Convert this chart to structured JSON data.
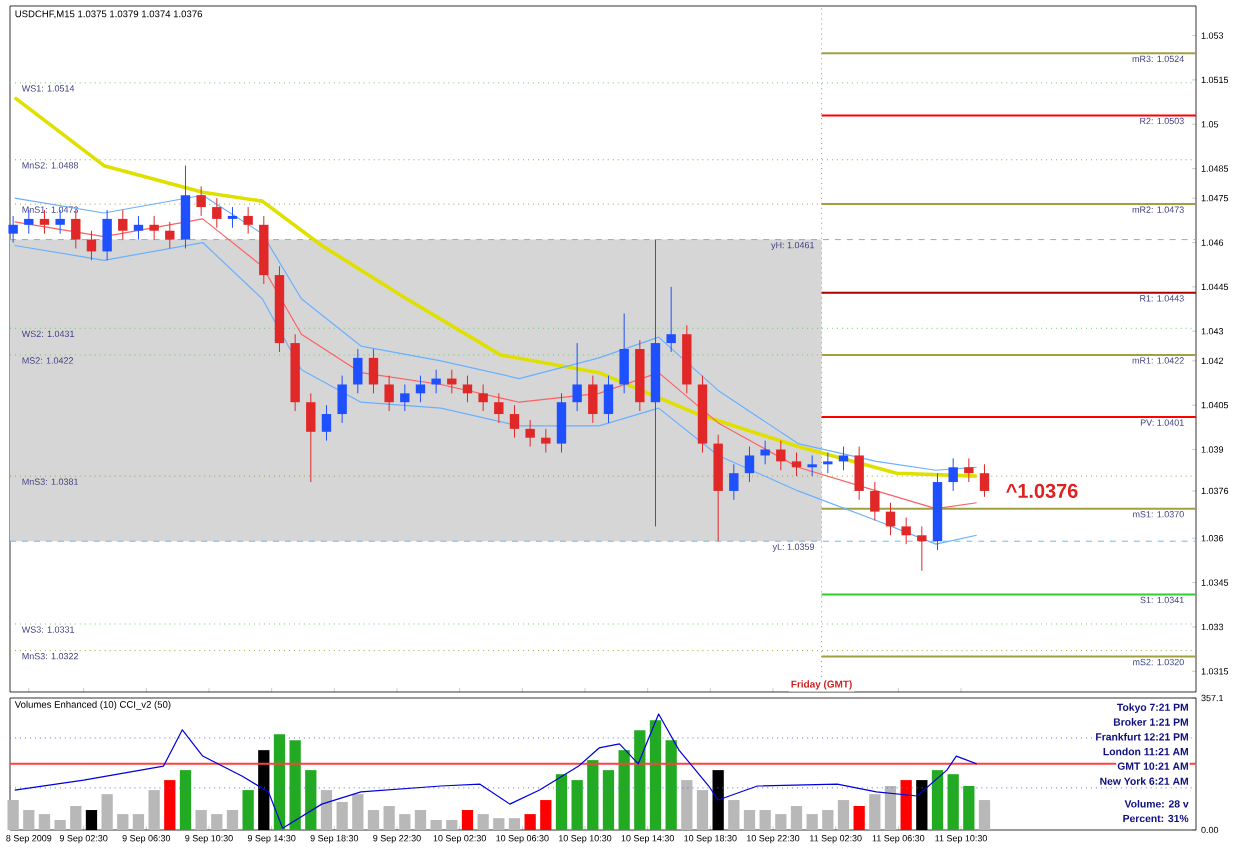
{
  "chart_data": [
    {
      "type": "candlestick",
      "title": "USDCHF,M15  1.0375 1.0379 1.0374 1.0376",
      "x": [
        "2009-09-08T22:00",
        "2009-09-08T23:00",
        "2009-09-09T00:00",
        "2009-09-09T01:00",
        "2009-09-09T02:00",
        "2009-09-09T03:00",
        "2009-09-09T04:00",
        "2009-09-09T05:00",
        "2009-09-09T06:00",
        "2009-09-09T07:00",
        "2009-09-09T08:00",
        "2009-09-09T09:00",
        "2009-09-09T10:00",
        "2009-09-09T11:00",
        "2009-09-09T12:00",
        "2009-09-09T13:00",
        "2009-09-09T14:00",
        "2009-09-09T15:00",
        "2009-09-09T16:00",
        "2009-09-09T17:00",
        "2009-09-09T18:00",
        "2009-09-09T19:00",
        "2009-09-09T20:00",
        "2009-09-09T21:00",
        "2009-09-09T22:00",
        "2009-09-09T23:00",
        "2009-09-10T00:00",
        "2009-09-10T01:00",
        "2009-09-10T02:00",
        "2009-09-10T03:00",
        "2009-09-10T04:00",
        "2009-09-10T05:00",
        "2009-09-10T06:00",
        "2009-09-10T07:00",
        "2009-09-10T08:00",
        "2009-09-10T09:00",
        "2009-09-10T10:00",
        "2009-09-10T11:00",
        "2009-09-10T12:00",
        "2009-09-10T13:00",
        "2009-09-10T14:00",
        "2009-09-10T15:00",
        "2009-09-10T16:00",
        "2009-09-10T17:00",
        "2009-09-10T18:00",
        "2009-09-10T19:00",
        "2009-09-10T20:00",
        "2009-09-10T21:00",
        "2009-09-10T22:00",
        "2009-09-10T23:00",
        "2009-09-11T00:00",
        "2009-09-11T01:00",
        "2009-09-11T02:00",
        "2009-09-11T03:00",
        "2009-09-11T04:00",
        "2009-09-11T05:00",
        "2009-09-11T06:00",
        "2009-09-11T07:00",
        "2009-09-11T08:00",
        "2009-09-11T09:00",
        "2009-09-11T10:00",
        "2009-09-11T11:00",
        "2009-09-11T12:00"
      ],
      "ohlc": [
        [
          1.0463,
          1.0469,
          1.046,
          1.0466
        ],
        [
          1.0466,
          1.0471,
          1.0463,
          1.0468
        ],
        [
          1.0468,
          1.0471,
          1.0463,
          1.0466
        ],
        [
          1.0466,
          1.0471,
          1.0463,
          1.0468
        ],
        [
          1.0468,
          1.0471,
          1.0458,
          1.0461
        ],
        [
          1.0461,
          1.0464,
          1.0454,
          1.0457
        ],
        [
          1.0457,
          1.0471,
          1.0454,
          1.0468
        ],
        [
          1.0468,
          1.0471,
          1.0461,
          1.0464
        ],
        [
          1.0464,
          1.0469,
          1.0461,
          1.0466
        ],
        [
          1.0466,
          1.0469,
          1.0461,
          1.0464
        ],
        [
          1.0464,
          1.0467,
          1.0458,
          1.0461
        ],
        [
          1.0461,
          1.0486,
          1.0458,
          1.0476
        ],
        [
          1.0476,
          1.0479,
          1.0469,
          1.0472
        ],
        [
          1.0472,
          1.0475,
          1.0465,
          1.0468
        ],
        [
          1.0468,
          1.0472,
          1.0465,
          1.0469
        ],
        [
          1.0469,
          1.0472,
          1.0463,
          1.0466
        ],
        [
          1.0466,
          1.0469,
          1.0446,
          1.0449
        ],
        [
          1.0449,
          1.0452,
          1.0423,
          1.0426
        ],
        [
          1.0426,
          1.0429,
          1.0403,
          1.0406
        ],
        [
          1.0406,
          1.0409,
          1.0379,
          1.0396
        ],
        [
          1.0396,
          1.0405,
          1.0393,
          1.0402
        ],
        [
          1.0402,
          1.0415,
          1.0399,
          1.0412
        ],
        [
          1.0412,
          1.0424,
          1.0409,
          1.0421
        ],
        [
          1.0421,
          1.0424,
          1.0409,
          1.0412
        ],
        [
          1.0412,
          1.0415,
          1.0403,
          1.0406
        ],
        [
          1.0406,
          1.0412,
          1.0403,
          1.0409
        ],
        [
          1.0409,
          1.0415,
          1.0406,
          1.0412
        ],
        [
          1.0412,
          1.0417,
          1.0409,
          1.0414
        ],
        [
          1.0414,
          1.0417,
          1.0409,
          1.0412
        ],
        [
          1.0412,
          1.0415,
          1.0406,
          1.0409
        ],
        [
          1.0409,
          1.0412,
          1.0403,
          1.0406
        ],
        [
          1.0406,
          1.0409,
          1.0399,
          1.0402
        ],
        [
          1.0402,
          1.0405,
          1.0394,
          1.0397
        ],
        [
          1.0397,
          1.04,
          1.0391,
          1.0394
        ],
        [
          1.0394,
          1.0397,
          1.0389,
          1.0392
        ],
        [
          1.0392,
          1.0409,
          1.0389,
          1.0406
        ],
        [
          1.0406,
          1.0426,
          1.0403,
          1.0412
        ],
        [
          1.0412,
          1.0415,
          1.0399,
          1.0402
        ],
        [
          1.0402,
          1.0415,
          1.0399,
          1.0412
        ],
        [
          1.0412,
          1.0436,
          1.0409,
          1.0424
        ],
        [
          1.0424,
          1.0427,
          1.0403,
          1.0406
        ],
        [
          1.0406,
          1.0461,
          1.0364,
          1.0426
        ],
        [
          1.0426,
          1.0445,
          1.0423,
          1.0429
        ],
        [
          1.0429,
          1.0432,
          1.0409,
          1.0412
        ],
        [
          1.0412,
          1.0415,
          1.0389,
          1.0392
        ],
        [
          1.0392,
          1.0395,
          1.0359,
          1.0376
        ],
        [
          1.0376,
          1.0385,
          1.0373,
          1.0382
        ],
        [
          1.0382,
          1.0391,
          1.0379,
          1.0388
        ],
        [
          1.0388,
          1.0393,
          1.0385,
          1.039
        ],
        [
          1.039,
          1.0393,
          1.0383,
          1.0386
        ],
        [
          1.0386,
          1.0389,
          1.0381,
          1.0384
        ],
        [
          1.0384,
          1.0388,
          1.0381,
          1.0385
        ],
        [
          1.0385,
          1.0389,
          1.0382,
          1.0386
        ],
        [
          1.0386,
          1.0391,
          1.0383,
          1.0388
        ],
        [
          1.0388,
          1.0391,
          1.0373,
          1.0376
        ],
        [
          1.0376,
          1.0379,
          1.0366,
          1.0369
        ],
        [
          1.0369,
          1.0372,
          1.0361,
          1.0364
        ],
        [
          1.0364,
          1.0367,
          1.0358,
          1.0361
        ],
        [
          1.0361,
          1.0364,
          1.0349,
          1.0359
        ],
        [
          1.0359,
          1.0382,
          1.0356,
          1.0379
        ],
        [
          1.0379,
          1.0387,
          1.0376,
          1.0384
        ],
        [
          1.0384,
          1.0387,
          1.0379,
          1.0382
        ],
        [
          1.0382,
          1.0385,
          1.0374,
          1.0376
        ]
      ],
      "series": [
        {
          "type": "line",
          "color": "#e0e000",
          "x": [
            "2009-09-08T22:06",
            "2009-09-09T03:48",
            "2009-09-09T10:06",
            "2009-09-09T13:54",
            "2009-09-09T17:42",
            "2009-09-09T22:48",
            "2009-09-10T05:06",
            "2009-09-10T11:24",
            "2009-09-10T17:42",
            "2009-09-11T00:06",
            "2009-09-11T06:24",
            "2009-09-11T11:30"
          ],
          "values": [
            1.0509,
            1.0486,
            1.0477,
            1.0474,
            1.0459,
            1.0442,
            1.0422,
            1.0416,
            1.0402,
            1.0391,
            1.0382,
            1.0381
          ]
        },
        {
          "type": "line",
          "color": "#ff6060",
          "x": [
            "2009-09-08T22:06",
            "2009-09-09T03:48",
            "2009-09-09T10:06",
            "2009-09-09T13:54",
            "2009-09-09T16:24",
            "2009-09-09T20:12",
            "2009-09-10T01:18",
            "2009-09-10T06:18",
            "2009-09-10T11:24",
            "2009-09-10T15:12",
            "2009-09-10T19:00",
            "2009-09-11T00:06",
            "2009-09-11T05:06",
            "2009-09-11T08:54",
            "2009-09-11T11:30"
          ],
          "values": [
            1.0467,
            1.0462,
            1.0468,
            1.0452,
            1.0429,
            1.0416,
            1.0412,
            1.0406,
            1.0409,
            1.0416,
            1.0399,
            1.0384,
            1.0376,
            1.037,
            1.0372
          ]
        },
        {
          "type": "line",
          "color": "#6ab0ff",
          "x": [
            "2009-09-08T22:06",
            "2009-09-09T03:48",
            "2009-09-09T10:06",
            "2009-09-09T13:54",
            "2009-09-09T16:24",
            "2009-09-09T20:12",
            "2009-09-10T01:18",
            "2009-09-10T06:18",
            "2009-09-10T11:24",
            "2009-09-10T15:12",
            "2009-09-10T19:00",
            "2009-09-11T00:06",
            "2009-09-11T05:06",
            "2009-09-11T08:54",
            "2009-09-11T11:30"
          ],
          "values": [
            1.0475,
            1.047,
            1.0476,
            1.0463,
            1.0441,
            1.0425,
            1.042,
            1.0414,
            1.0421,
            1.0428,
            1.041,
            1.0392,
            1.0386,
            1.0383,
            1.0384
          ]
        },
        {
          "type": "line",
          "color": "#6ab0ff",
          "x": [
            "2009-09-08T22:06",
            "2009-09-09T03:48",
            "2009-09-09T10:06",
            "2009-09-09T13:54",
            "2009-09-09T16:24",
            "2009-09-09T20:12",
            "2009-09-10T01:18",
            "2009-09-10T06:18",
            "2009-09-10T11:24",
            "2009-09-10T15:12",
            "2009-09-10T19:00",
            "2009-09-11T00:06",
            "2009-09-11T05:06",
            "2009-09-11T08:54",
            "2009-09-11T11:30"
          ],
          "values": [
            1.0459,
            1.0454,
            1.046,
            1.0441,
            1.0417,
            1.0406,
            1.0404,
            1.0398,
            1.0398,
            1.0404,
            1.0388,
            1.0376,
            1.0366,
            1.0358,
            1.0361
          ]
        }
      ],
      "xlim": [
        "2009-09-08T21:48",
        "2009-09-12T01:30"
      ],
      "ylim": [
        1.0308,
        1.054
      ],
      "xticks": [
        {
          "value": "2009-09-08T23:00",
          "label": null
        },
        {
          "value": "2009-09-09T02:30",
          "label": null
        },
        {
          "value": "2009-09-09T06:30",
          "label": null
        },
        {
          "value": "2009-09-09T10:30",
          "label": null
        },
        {
          "value": "2009-09-09T14:30",
          "label": null
        },
        {
          "value": "2009-09-09T18:30",
          "label": null
        },
        {
          "value": "2009-09-09T22:30",
          "label": null
        },
        {
          "value": "2009-09-10T02:30",
          "label": null
        },
        {
          "value": "2009-09-10T06:30",
          "label": null
        },
        {
          "value": "2009-09-10T10:30",
          "label": null
        },
        {
          "value": "2009-09-10T14:30",
          "label": null
        },
        {
          "value": "2009-09-10T18:30",
          "label": null
        },
        {
          "value": "2009-09-10T22:30",
          "label": null
        },
        {
          "value": "2009-09-11T02:30",
          "label": null
        },
        {
          "value": "2009-09-11T06:30",
          "label": null
        },
        {
          "value": "2009-09-11T10:30",
          "label": null
        }
      ],
      "yticks": [
        1.0315,
        1.033,
        1.0345,
        1.036,
        {
          "value": 1.0376,
          "label": "1.0376"
        },
        1.039,
        1.0405,
        1.042,
        1.043,
        1.0445,
        1.046,
        1.0475,
        1.0485,
        1.05,
        1.0515,
        1.053
      ],
      "tick_labels": "y",
      "bands": [
        {
          "axis": "y",
          "from": 1.0359,
          "to": 1.0461,
          "color": "#d6d6d6"
        }
      ],
      "ref_lines": [
        {
          "axis": "x",
          "value": "2009-09-11T01:36",
          "label": "Friday  (GMT)",
          "color": "#a0a040",
          "line_style": "dotted"
        },
        {
          "axis": "y",
          "value": 1.0514,
          "label": "WS1: 1.0514",
          "color": "#66cc66",
          "line_style": "dotted"
        },
        {
          "axis": "y",
          "value": 1.0488,
          "label": "MnS2: 1.0488",
          "color": "#a0a040",
          "line_style": "dotted"
        },
        {
          "axis": "y",
          "value": 1.0473,
          "label": "MnS1: 1.0473",
          "color": "#a0a040",
          "line_style": "dotted"
        },
        {
          "axis": "y",
          "value": 1.0431,
          "label": "WS2: 1.0431",
          "color": "#66cc66",
          "line_style": "dotted"
        },
        {
          "axis": "y",
          "value": 1.0422,
          "label": "MS2: 1.0422",
          "color": "#66cc66",
          "line_style": "dotted"
        },
        {
          "axis": "y",
          "value": 1.0381,
          "label": "MnS3: 1.0381",
          "color": "#a0a040",
          "line_style": "dotted"
        },
        {
          "axis": "y",
          "value": 1.0331,
          "label": "WS3: 1.0331",
          "color": "#66cc66",
          "line_style": "dotted"
        },
        {
          "axis": "y",
          "value": 1.0322,
          "label": "MnS3: 1.0322",
          "color": "#a0a040",
          "line_style": "dotted"
        },
        {
          "axis": "y",
          "value": 1.0461,
          "label": "yH: 1.0461",
          "color": "#66bbee",
          "line_style": "dashed"
        },
        {
          "axis": "y",
          "value": 1.0359,
          "label": "yL: 1.0359",
          "color": "#66bbee",
          "line_style": "dashed"
        },
        {
          "axis": "y",
          "value": 1.0524,
          "label": "mR3: 1.0524",
          "color": "#a0a040",
          "line_style": "solid"
        },
        {
          "axis": "y",
          "value": 1.0503,
          "label": "R2: 1.0503",
          "color": "#ff0000",
          "line_style": "solid"
        },
        {
          "axis": "y",
          "value": 1.0473,
          "label": "mR2: 1.0473",
          "color": "#a0a040",
          "line_style": "solid"
        },
        {
          "axis": "y",
          "value": 1.0443,
          "label": "R1: 1.0443",
          "color": "#aa0000",
          "line_style": "solid"
        },
        {
          "axis": "y",
          "value": 1.0422,
          "label": "mR1: 1.0422",
          "color": "#a0a040",
          "line_style": "solid"
        },
        {
          "axis": "y",
          "value": 1.0401,
          "label": "PV: 1.0401",
          "color": "#ff0000",
          "line_style": "solid"
        },
        {
          "axis": "y",
          "value": 1.037,
          "label": "mS1: 1.0370",
          "color": "#a0a040",
          "line_style": "solid"
        },
        {
          "axis": "y",
          "value": 1.0341,
          "label": "S1: 1.0341",
          "color": "#33cc33",
          "line_style": "solid"
        },
        {
          "axis": "y",
          "value": 1.032,
          "label": "mS2: 1.0320",
          "color": "#a0a040",
          "line_style": "solid"
        }
      ],
      "annotations": [
        "^1.0376"
      ]
    },
    {
      "type": "bar",
      "title": "Volumes Enhanced (10)   CCI_v2 (50)",
      "x": [
        "2009-09-08T22:00",
        "2009-09-08T23:00",
        "2009-09-09T00:00",
        "2009-09-09T01:00",
        "2009-09-09T02:00",
        "2009-09-09T03:00",
        "2009-09-09T04:00",
        "2009-09-09T05:00",
        "2009-09-09T06:00",
        "2009-09-09T07:00",
        "2009-09-09T08:00",
        "2009-09-09T09:00",
        "2009-09-09T10:00",
        "2009-09-09T11:00",
        "2009-09-09T12:00",
        "2009-09-09T13:00",
        "2009-09-09T14:00",
        "2009-09-09T15:00",
        "2009-09-09T16:00",
        "2009-09-09T17:00",
        "2009-09-09T18:00",
        "2009-09-09T19:00",
        "2009-09-09T20:00",
        "2009-09-09T21:00",
        "2009-09-09T22:00",
        "2009-09-09T23:00",
        "2009-09-10T00:00",
        "2009-09-10T01:00",
        "2009-09-10T02:00",
        "2009-09-10T03:00",
        "2009-09-10T04:00",
        "2009-09-10T05:00",
        "2009-09-10T06:00",
        "2009-09-10T07:00",
        "2009-09-10T08:00",
        "2009-09-10T09:00",
        "2009-09-10T10:00",
        "2009-09-10T11:00",
        "2009-09-10T12:00",
        "2009-09-10T13:00",
        "2009-09-10T14:00",
        "2009-09-10T15:00",
        "2009-09-10T16:00",
        "2009-09-10T17:00",
        "2009-09-10T18:00",
        "2009-09-10T19:00",
        "2009-09-10T20:00",
        "2009-09-10T21:00",
        "2009-09-10T22:00",
        "2009-09-10T23:00",
        "2009-09-11T00:00",
        "2009-09-11T01:00",
        "2009-09-11T02:00",
        "2009-09-11T03:00",
        "2009-09-11T04:00",
        "2009-09-11T05:00",
        "2009-09-11T06:00",
        "2009-09-11T07:00",
        "2009-09-11T08:00",
        "2009-09-11T09:00",
        "2009-09-11T10:00",
        "2009-09-11T11:00",
        "2009-09-11T12:00"
      ],
      "series": [
        {
          "type": "bar",
          "values": [
            81,
            54,
            43,
            27,
            65,
            54,
            97,
            43,
            43,
            108,
            135,
            162,
            54,
            43,
            54,
            108,
            216,
            259,
            243,
            162,
            108,
            76,
            97,
            54,
            65,
            43,
            54,
            27,
            27,
            54,
            43,
            32,
            32,
            43,
            81,
            151,
            135,
            189,
            162,
            216,
            270,
            297,
            243,
            135,
            108,
            162,
            81,
            54,
            54,
            43,
            65,
            43,
            54,
            81,
            65,
            97,
            119,
            135,
            135,
            162,
            151,
            119,
            81
          ],
          "colors": [
            "#b8b8b8",
            "#b8b8b8",
            "#b8b8b8",
            "#b8b8b8",
            "#b8b8b8",
            "#000000",
            "#b8b8b8",
            "#b8b8b8",
            "#b8b8b8",
            "#b8b8b8",
            "#ff0000",
            "#22aa22",
            "#b8b8b8",
            "#b8b8b8",
            "#b8b8b8",
            "#22aa22",
            "#000000",
            "#22aa22",
            "#22aa22",
            "#22aa22",
            "#b8b8b8",
            "#b8b8b8",
            "#b8b8b8",
            "#b8b8b8",
            "#b8b8b8",
            "#b8b8b8",
            "#b8b8b8",
            "#b8b8b8",
            "#b8b8b8",
            "#ff0000",
            "#b8b8b8",
            "#b8b8b8",
            "#b8b8b8",
            "#ff0000",
            "#ff0000",
            "#22aa22",
            "#22aa22",
            "#22aa22",
            "#22aa22",
            "#22aa22",
            "#22aa22",
            "#22aa22",
            "#22aa22",
            "#b8b8b8",
            "#b8b8b8",
            "#000000",
            "#b8b8b8",
            "#b8b8b8",
            "#b8b8b8",
            "#b8b8b8",
            "#b8b8b8",
            "#b8b8b8",
            "#b8b8b8",
            "#b8b8b8",
            "#ff0000",
            "#b8b8b8",
            "#b8b8b8",
            "#ff0000",
            "#000000",
            "#22aa22",
            "#22aa22",
            "#22aa22",
            "#b8b8b8"
          ]
        },
        {
          "type": "line",
          "color": "#0000dd",
          "x": [
            "2009-09-08T22:06",
            "2009-09-09T02:30",
            "2009-09-09T07:36",
            "2009-09-09T08:48",
            "2009-09-09T10:06",
            "2009-09-09T12:36",
            "2009-09-09T14:18",
            "2009-09-09T15:12",
            "2009-09-09T17:42",
            "2009-09-09T20:12",
            "2009-09-10T01:18",
            "2009-09-10T03:48",
            "2009-09-10T05:42",
            "2009-09-10T07:36",
            "2009-09-10T10:06",
            "2009-09-10T11:24",
            "2009-09-10T12:42",
            "2009-09-10T13:54",
            "2009-09-10T15:12",
            "2009-09-10T16:30",
            "2009-09-10T18:24",
            "2009-09-10T19:00",
            "2009-09-10T21:30",
            "2009-09-11T02:36",
            "2009-09-11T05:06",
            "2009-09-11T07:42",
            "2009-09-11T09:36",
            "2009-09-11T10:12",
            "2009-09-11T11:30"
          ],
          "values": [
            108,
            135,
            173,
            271,
            200,
            146,
            103,
            5,
            70,
            103,
            119,
            124,
            70,
            108,
            173,
            222,
            233,
            179,
            314,
            216,
            119,
            81,
            119,
            124,
            103,
            92,
            162,
            200,
            179
          ]
        }
      ],
      "xlim": [
        "2009-09-08T21:48",
        "2009-09-12T01:30"
      ],
      "ylim": [
        0,
        357.1
      ],
      "xticks": [
        {
          "value": "2009-09-08T23:00",
          "label": "8 Sep 2009"
        },
        {
          "value": "2009-09-09T02:30",
          "label": "9 Sep 02:30"
        },
        {
          "value": "2009-09-09T06:30",
          "label": "9 Sep 06:30"
        },
        {
          "value": "2009-09-09T10:30",
          "label": "9 Sep 10:30"
        },
        {
          "value": "2009-09-09T14:30",
          "label": "9 Sep 14:30"
        },
        {
          "value": "2009-09-09T18:30",
          "label": "9 Sep 18:30"
        },
        {
          "value": "2009-09-09T22:30",
          "label": "9 Sep 22:30"
        },
        {
          "value": "2009-09-10T02:30",
          "label": "10 Sep 02:30"
        },
        {
          "value": "2009-09-10T06:30",
          "label": "10 Sep 06:30"
        },
        {
          "value": "2009-09-10T10:30",
          "label": "10 Sep 10:30"
        },
        {
          "value": "2009-09-10T14:30",
          "label": "10 Sep 14:30"
        },
        {
          "value": "2009-09-10T18:30",
          "label": "10 Sep 18:30"
        },
        {
          "value": "2009-09-10T22:30",
          "label": "10 Sep 22:30"
        },
        {
          "value": "2009-09-11T02:30",
          "label": "11 Sep 02:30"
        },
        {
          "value": "2009-09-11T06:30",
          "label": "11 Sep 06:30"
        },
        {
          "value": "2009-09-11T10:30",
          "label": "11 Sep 10:30"
        }
      ],
      "yticks": [
        {
          "value": 0,
          "label": "0.00"
        },
        357.1
      ],
      "ref_lines": [
        {
          "axis": "y",
          "value": 249,
          "color": "#6666ff",
          "line_style": "dotted"
        },
        {
          "axis": "y",
          "value": 179,
          "color": "#ff4040",
          "line_style": "solid"
        },
        {
          "axis": "y",
          "value": 114,
          "color": "#6666ff",
          "line_style": "dotted"
        }
      ],
      "annotations": [
        "Tokyo   7:21 PM",
        "Broker   1:21 PM",
        "Frankfurt   12:21 PM",
        "London   11:21 AM",
        "GMT   10:21 AM",
        "New York   6:21 AM",
        "Volume:   28 v",
        "Percent:   31%"
      ]
    }
  ]
}
